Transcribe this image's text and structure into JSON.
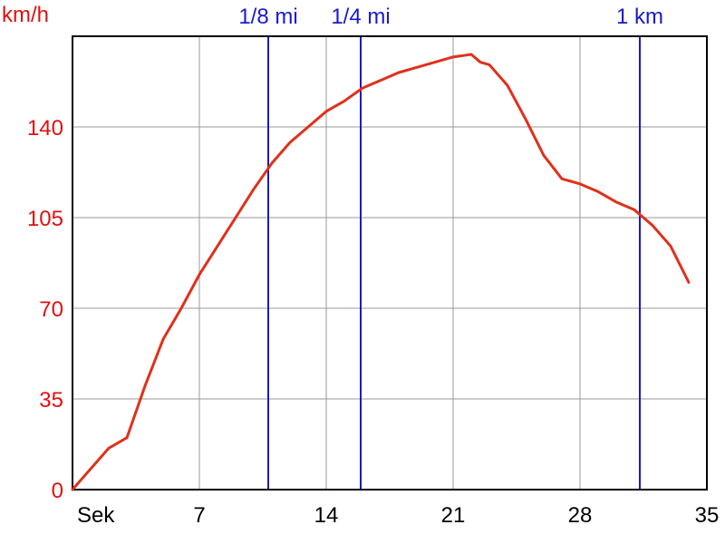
{
  "chart_data": {
    "type": "line",
    "ylabel": "km/h",
    "xlabel": "Sek",
    "xlim": [
      0,
      35
    ],
    "ylim": [
      0,
      175
    ],
    "xticks": [
      7,
      14,
      21,
      28,
      35
    ],
    "yticks": [
      0,
      35,
      70,
      105,
      140
    ],
    "grid": true,
    "series": [
      {
        "x": [
          0.0,
          0.5,
          1.0,
          1.5,
          2.0,
          2.5,
          3.0,
          4.0,
          5.0,
          6.0,
          7.0,
          8.0,
          9.0,
          10.0,
          11.0,
          12.0,
          13.0,
          14.0,
          15.0,
          16.0,
          17.0,
          18.0,
          19.0,
          20.0,
          21.0,
          21.5,
          22.0,
          22.5,
          23.0,
          24.0,
          25.0,
          26.0,
          27.0,
          28.0,
          29.0,
          30.0,
          31.0,
          31.5,
          32.0,
          33.0,
          34.0
        ],
        "y": [
          0,
          4,
          8,
          12,
          16,
          18,
          20,
          40,
          58,
          70,
          83,
          94,
          105,
          116,
          126,
          134,
          140,
          146,
          150,
          155,
          158,
          161,
          163,
          165,
          167,
          167.5,
          168,
          165,
          164,
          156,
          143,
          129,
          120,
          118,
          115,
          111,
          108,
          105,
          102,
          94,
          80
        ],
        "color": "#e0301a"
      }
    ],
    "markers": [
      {
        "label": "1/8 mi",
        "x": 10.8
      },
      {
        "label": "1/4 mi",
        "x": 15.9
      },
      {
        "label": "1 km",
        "x": 31.3
      }
    ],
    "colors": {
      "line": "#e0301a",
      "marker": "#1a1acc",
      "grid": "#999999",
      "axis": "#000000",
      "ytick": "#e01010"
    }
  }
}
